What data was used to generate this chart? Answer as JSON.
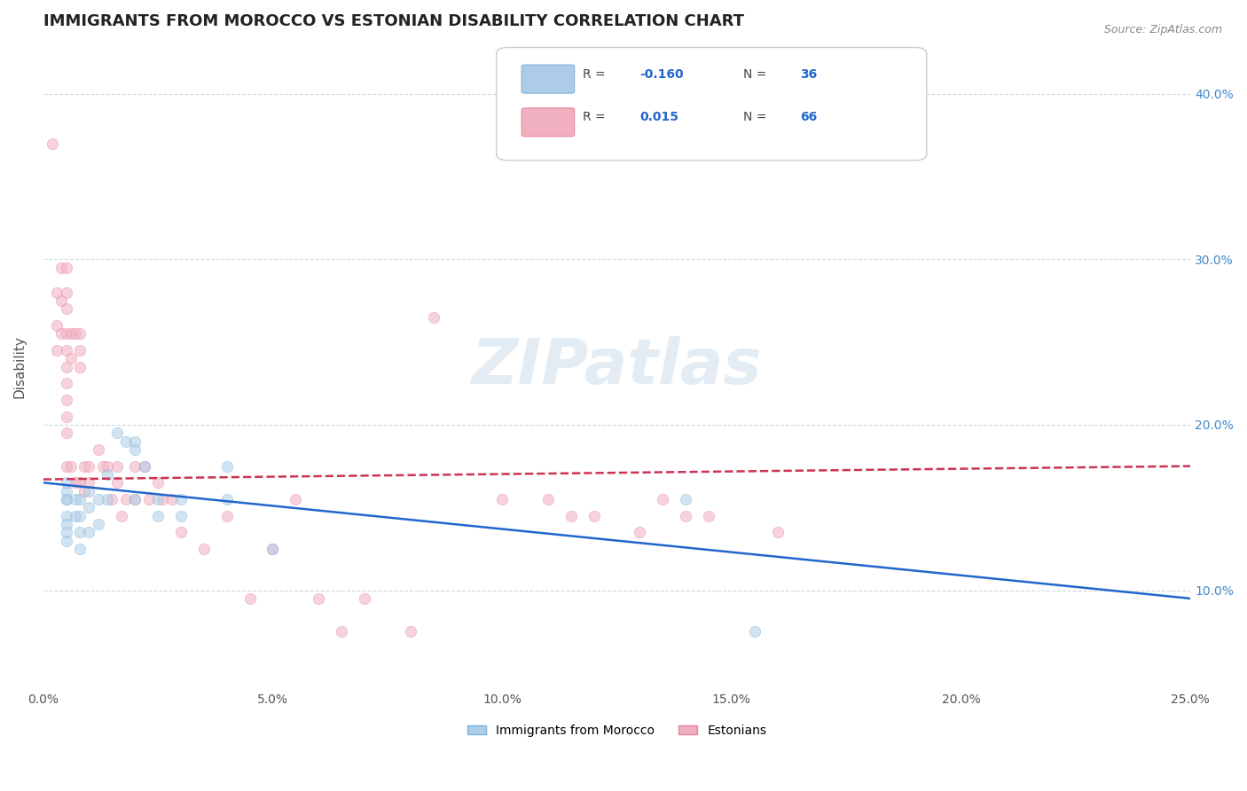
{
  "title": "IMMIGRANTS FROM MOROCCO VS ESTONIAN DISABILITY CORRELATION CHART",
  "source_text": "Source: ZipAtlas.com",
  "xlabel": "",
  "ylabel": "Disability",
  "xlim": [
    0.0,
    0.25
  ],
  "ylim": [
    0.04,
    0.43
  ],
  "xticks": [
    0.0,
    0.05,
    0.1,
    0.15,
    0.2,
    0.25
  ],
  "xtick_labels": [
    "0.0%",
    "5.0%",
    "10.0%",
    "15.0%",
    "20.0%",
    "25.0%"
  ],
  "yticks_right": [
    0.1,
    0.2,
    0.3,
    0.4
  ],
  "ytick_right_labels": [
    "10.0%",
    "20.0%",
    "30.0%",
    "40.0%"
  ],
  "blue_scatter_x": [
    0.005,
    0.005,
    0.005,
    0.005,
    0.005,
    0.005,
    0.005,
    0.005,
    0.007,
    0.007,
    0.008,
    0.008,
    0.008,
    0.008,
    0.01,
    0.01,
    0.01,
    0.012,
    0.012,
    0.014,
    0.014,
    0.016,
    0.018,
    0.02,
    0.02,
    0.02,
    0.022,
    0.025,
    0.025,
    0.03,
    0.03,
    0.04,
    0.04,
    0.05,
    0.14,
    0.155
  ],
  "blue_scatter_y": [
    0.155,
    0.16,
    0.165,
    0.155,
    0.145,
    0.14,
    0.135,
    0.13,
    0.155,
    0.145,
    0.155,
    0.145,
    0.135,
    0.125,
    0.16,
    0.15,
    0.135,
    0.155,
    0.14,
    0.17,
    0.155,
    0.195,
    0.19,
    0.19,
    0.185,
    0.155,
    0.175,
    0.155,
    0.145,
    0.155,
    0.145,
    0.175,
    0.155,
    0.125,
    0.155,
    0.075
  ],
  "pink_scatter_x": [
    0.002,
    0.003,
    0.003,
    0.003,
    0.004,
    0.004,
    0.004,
    0.005,
    0.005,
    0.005,
    0.005,
    0.005,
    0.005,
    0.005,
    0.005,
    0.005,
    0.005,
    0.005,
    0.006,
    0.006,
    0.006,
    0.007,
    0.007,
    0.008,
    0.008,
    0.008,
    0.008,
    0.009,
    0.009,
    0.01,
    0.01,
    0.012,
    0.013,
    0.014,
    0.015,
    0.016,
    0.016,
    0.017,
    0.018,
    0.02,
    0.02,
    0.022,
    0.023,
    0.025,
    0.026,
    0.028,
    0.03,
    0.035,
    0.04,
    0.045,
    0.05,
    0.055,
    0.06,
    0.065,
    0.07,
    0.08,
    0.085,
    0.1,
    0.11,
    0.115,
    0.12,
    0.13,
    0.135,
    0.14,
    0.145,
    0.16
  ],
  "pink_scatter_y": [
    0.37,
    0.28,
    0.26,
    0.245,
    0.295,
    0.275,
    0.255,
    0.295,
    0.28,
    0.27,
    0.255,
    0.245,
    0.235,
    0.225,
    0.215,
    0.205,
    0.195,
    0.175,
    0.255,
    0.24,
    0.175,
    0.255,
    0.165,
    0.255,
    0.245,
    0.235,
    0.165,
    0.175,
    0.16,
    0.175,
    0.165,
    0.185,
    0.175,
    0.175,
    0.155,
    0.175,
    0.165,
    0.145,
    0.155,
    0.175,
    0.155,
    0.175,
    0.155,
    0.165,
    0.155,
    0.155,
    0.135,
    0.125,
    0.145,
    0.095,
    0.125,
    0.155,
    0.095,
    0.075,
    0.095,
    0.075,
    0.265,
    0.155,
    0.155,
    0.145,
    0.145,
    0.135,
    0.155,
    0.145,
    0.145,
    0.135
  ],
  "blue_trend_x": [
    0.0,
    0.25
  ],
  "blue_trend_y": [
    0.165,
    0.095
  ],
  "pink_trend_x": [
    0.0,
    0.25
  ],
  "pink_trend_y": [
    0.167,
    0.175
  ],
  "scatter_alpha": 0.55,
  "scatter_size": 80,
  "blue_color": "#7ab3d9",
  "pink_color": "#e8849a",
  "blue_face_color": "#aecce8",
  "pink_face_color": "#f0b0c0",
  "trend_blue_color": "#2266cc",
  "trend_pink_color": "#cc3355",
  "watermark_text": "ZIPatlas",
  "watermark_color": "#c8d8e8",
  "background_color": "#ffffff",
  "grid_color": "#d0d8e0",
  "title_fontsize": 13,
  "axis_label_fontsize": 11,
  "tick_fontsize": 10,
  "legend_r1": "-0.160",
  "legend_n1": "36",
  "legend_r2": "0.015",
  "legend_n2": "66",
  "bottom_legend_labels": [
    "Immigrants from Morocco",
    "Estonians"
  ]
}
